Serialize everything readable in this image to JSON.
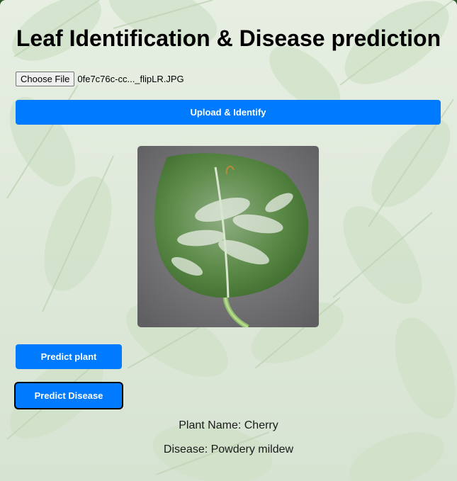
{
  "page": {
    "title": "Leaf Identification & Disease prediction"
  },
  "file_input": {
    "button_label": "Choose File",
    "file_name": "0fe7c76c-cc..._flipLR.JPG"
  },
  "buttons": {
    "upload": "Upload & Identify",
    "predict_plant": "Predict plant",
    "predict_disease": "Predict Disease"
  },
  "preview": {
    "icon": "leaf-image",
    "description_alt": "uploaded leaf image"
  },
  "results": {
    "plant": "Plant Name: Cherry",
    "disease": "Disease: Powdery mildew"
  },
  "colors": {
    "accent": "#007bff",
    "background_tint": "#e1eadc"
  }
}
